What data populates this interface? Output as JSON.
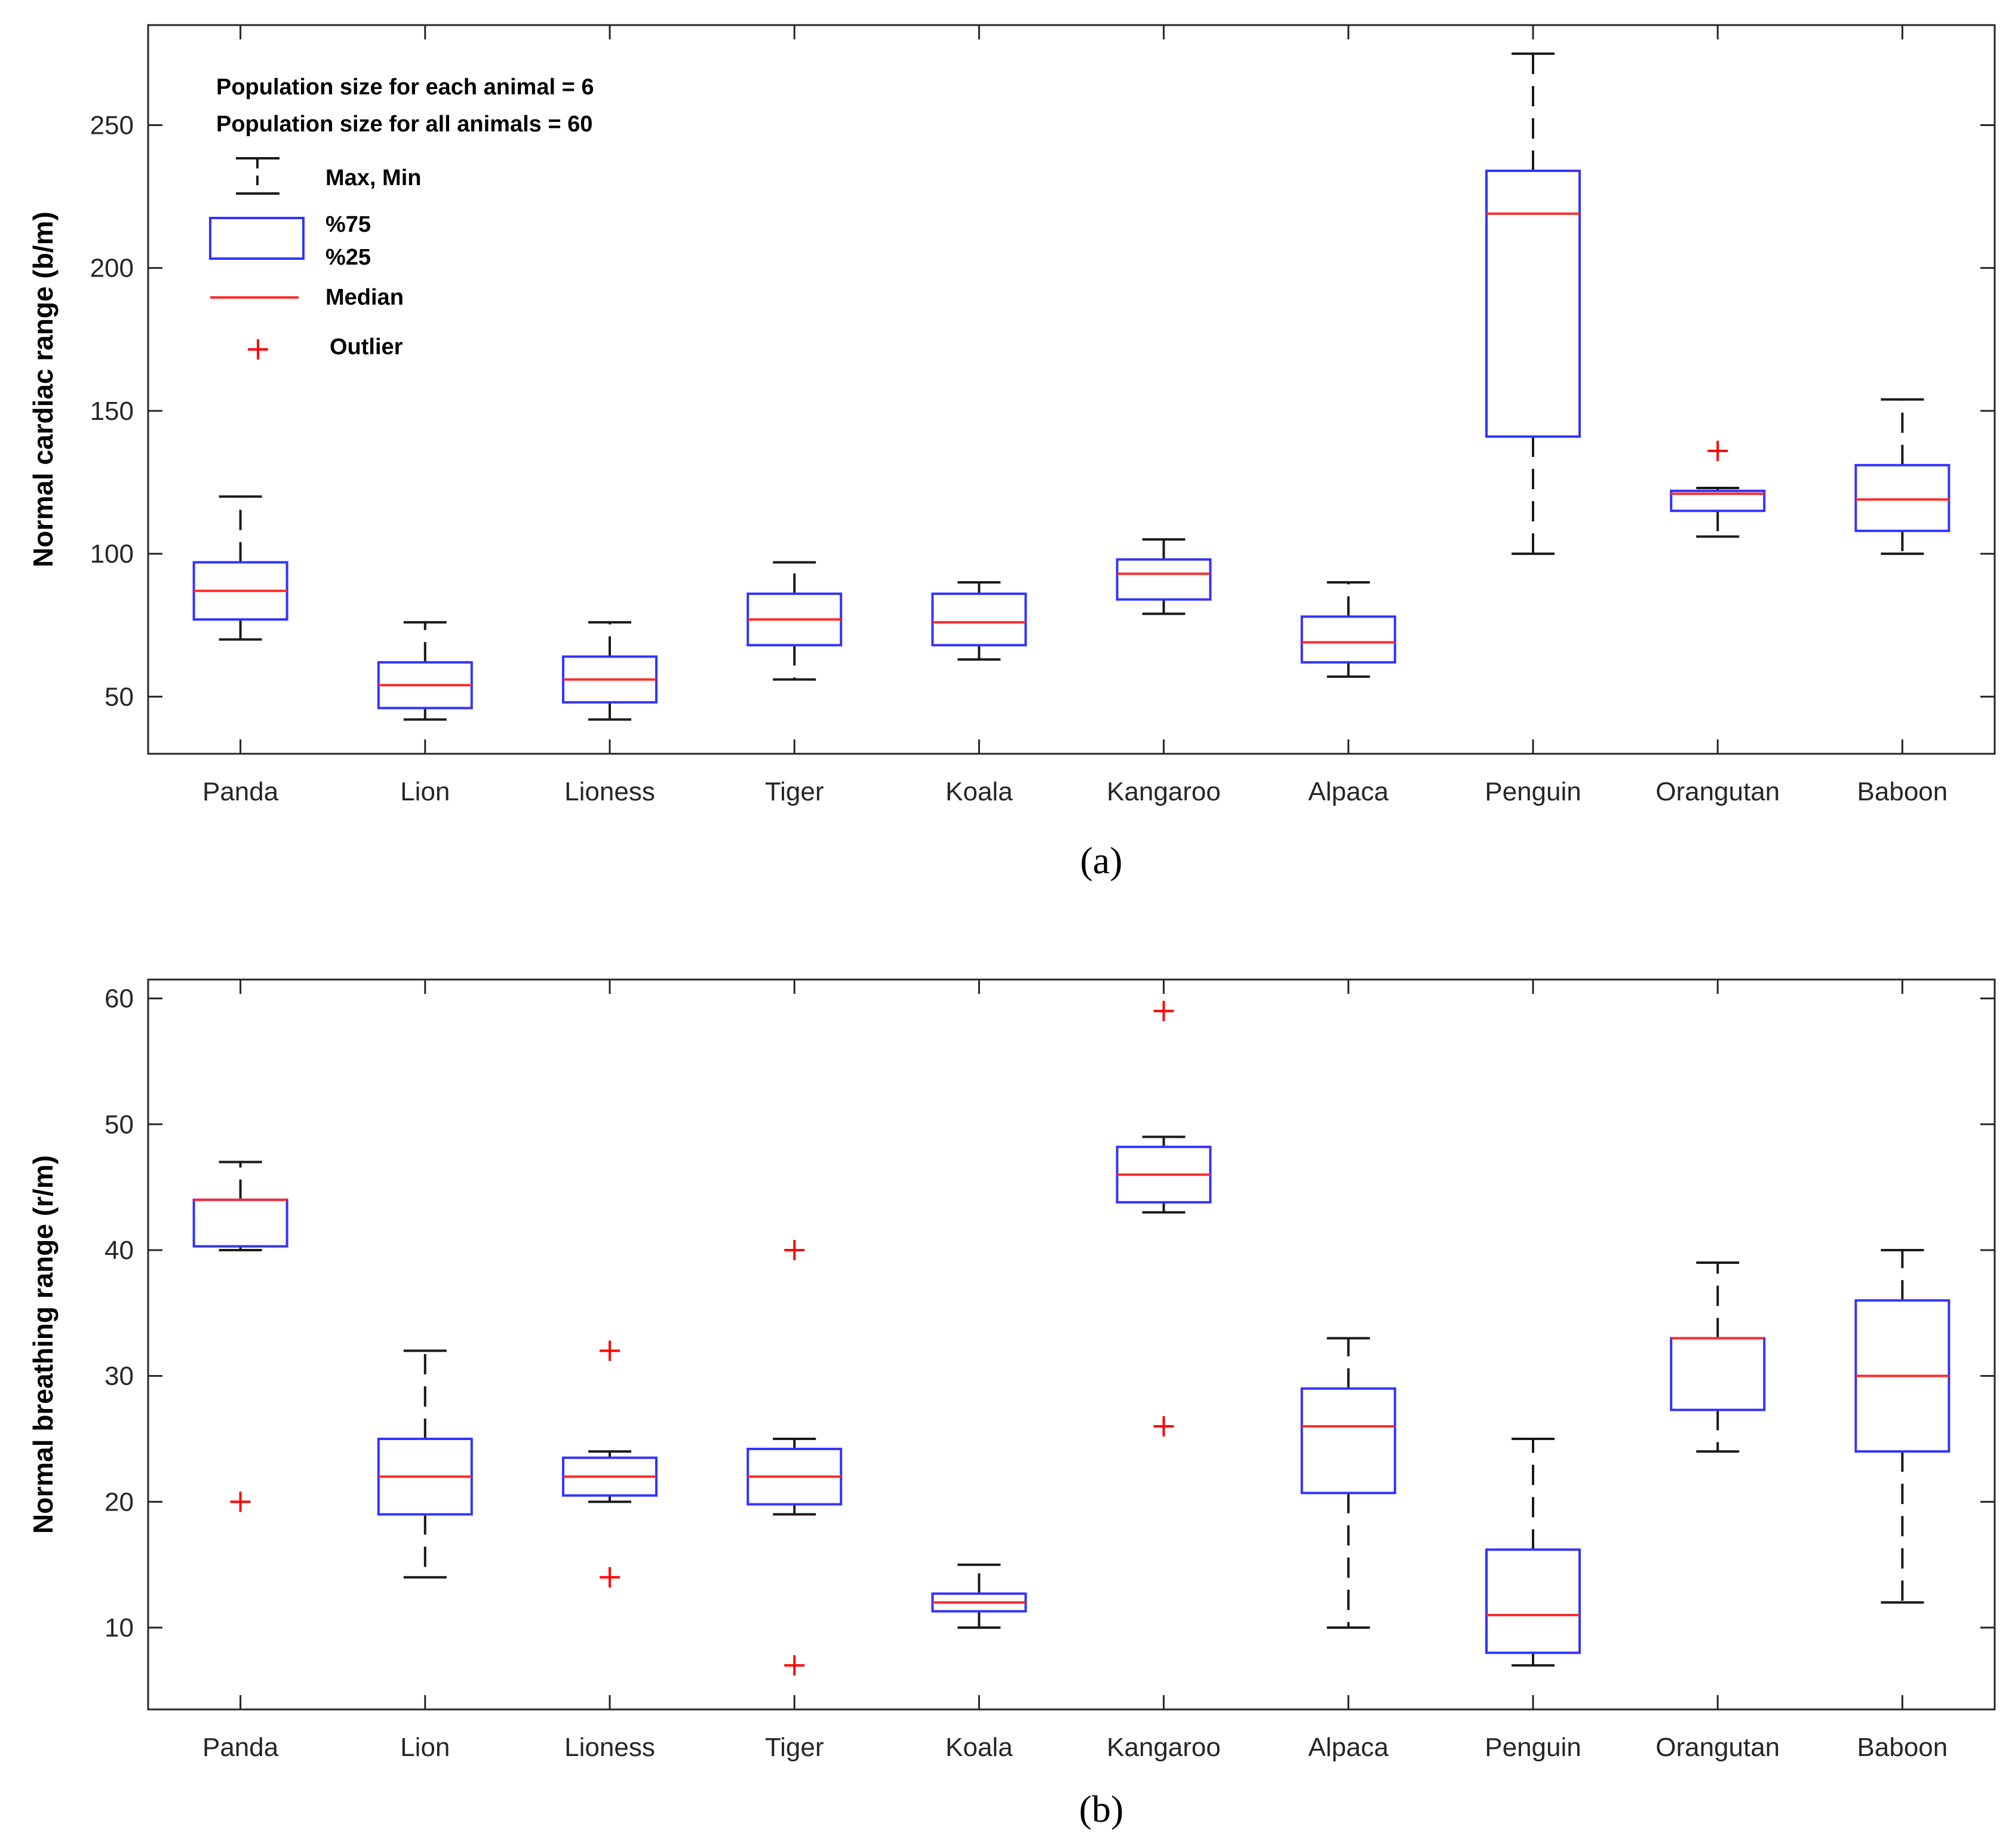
{
  "colors": {
    "box": "#3333ff",
    "median": "#ff2a2a",
    "whisker": "#1a1a1a",
    "outlier": "#ff0000",
    "axis": "#262626"
  },
  "legend": {
    "population_each": "Population size for each animal = 6",
    "population_all": "Population size for all animals = 60",
    "maxmin": "Max, Min",
    "p75": "%75",
    "p25": "%25",
    "median": "Median",
    "outlier": "Outlier"
  },
  "chart_data": [
    {
      "type": "box",
      "caption": "(a)",
      "ylabel": "Normal cardiac range (b/m)",
      "ylim": [
        30,
        285
      ],
      "yticks": [
        50,
        100,
        150,
        200,
        250
      ],
      "categories": [
        "Panda",
        "Lion",
        "Lioness",
        "Tiger",
        "Koala",
        "Kangaroo",
        "Alpaca",
        "Penguin",
        "Orangutan",
        "Baboon"
      ],
      "boxes": [
        {
          "min": 70,
          "q1": 77,
          "median": 87,
          "q3": 97,
          "max": 120,
          "outliers": []
        },
        {
          "min": 42,
          "q1": 46,
          "median": 54,
          "q3": 62,
          "max": 76,
          "outliers": []
        },
        {
          "min": 42,
          "q1": 48,
          "median": 56,
          "q3": 64,
          "max": 76,
          "outliers": []
        },
        {
          "min": 56,
          "q1": 68,
          "median": 77,
          "q3": 86,
          "max": 97,
          "outliers": []
        },
        {
          "min": 63,
          "q1": 68,
          "median": 76,
          "q3": 86,
          "max": 90,
          "outliers": []
        },
        {
          "min": 79,
          "q1": 84,
          "median": 93,
          "q3": 98,
          "max": 105,
          "outliers": []
        },
        {
          "min": 57,
          "q1": 62,
          "median": 69,
          "q3": 78,
          "max": 90,
          "outliers": []
        },
        {
          "min": 100,
          "q1": 141,
          "median": 219,
          "q3": 234,
          "max": 275,
          "outliers": []
        },
        {
          "min": 106,
          "q1": 115,
          "median": 121,
          "q3": 122,
          "max": 123,
          "outliers": [
            136
          ]
        },
        {
          "min": 100,
          "q1": 108,
          "median": 119,
          "q3": 131,
          "max": 154,
          "outliers": []
        }
      ]
    },
    {
      "type": "box",
      "caption": "(b)",
      "ylabel": "Normal breathing range (r/m)",
      "ylim": [
        3.5,
        61.5
      ],
      "yticks": [
        10,
        20,
        30,
        40,
        50,
        60
      ],
      "categories": [
        "Panda",
        "Lion",
        "Lioness",
        "Tiger",
        "Koala",
        "Kangaroo",
        "Alpaca",
        "Penguin",
        "Orangutan",
        "Baboon"
      ],
      "boxes": [
        {
          "min": 40,
          "q1": 40.3,
          "median": 44,
          "q3": 44,
          "max": 47,
          "outliers": [
            20
          ]
        },
        {
          "min": 14,
          "q1": 19,
          "median": 22,
          "q3": 25,
          "max": 32,
          "outliers": []
        },
        {
          "min": 20,
          "q1": 20.5,
          "median": 22,
          "q3": 23.5,
          "max": 24,
          "outliers": [
            14,
            32
          ]
        },
        {
          "min": 19,
          "q1": 19.8,
          "median": 22,
          "q3": 24.2,
          "max": 25,
          "outliers": [
            7,
            40
          ]
        },
        {
          "min": 10,
          "q1": 11.3,
          "median": 12,
          "q3": 12.7,
          "max": 15,
          "outliers": []
        },
        {
          "min": 43,
          "q1": 43.8,
          "median": 46,
          "q3": 48.2,
          "max": 49,
          "outliers": [
            26,
            59
          ]
        },
        {
          "min": 10,
          "q1": 20.7,
          "median": 26,
          "q3": 29,
          "max": 33,
          "outliers": []
        },
        {
          "min": 7,
          "q1": 8,
          "median": 11,
          "q3": 16.2,
          "max": 25,
          "outliers": []
        },
        {
          "min": 24,
          "q1": 27.3,
          "median": 33,
          "q3": 33,
          "max": 39,
          "outliers": []
        },
        {
          "min": 12,
          "q1": 24,
          "median": 30,
          "q3": 36,
          "max": 40,
          "outliers": []
        }
      ]
    }
  ]
}
